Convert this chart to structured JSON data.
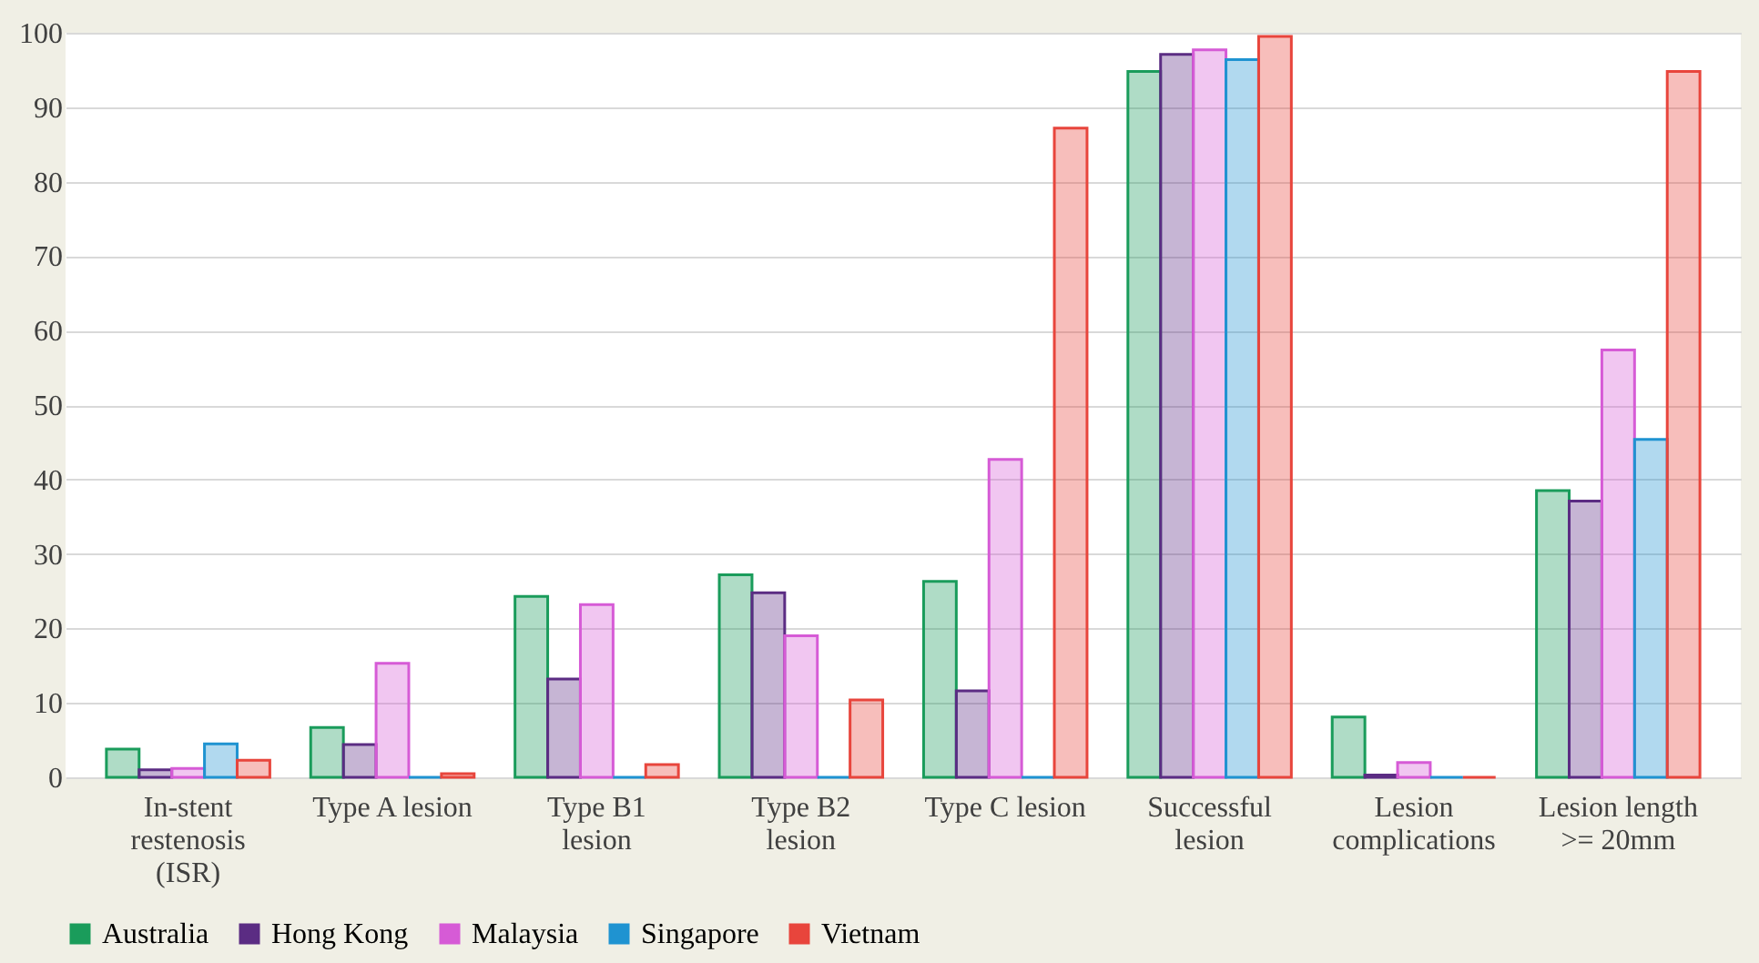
{
  "chart_data": {
    "type": "bar",
    "categories": [
      "In-stent\nrestenosis\n(ISR)",
      "Type A lesion",
      "Type  B1\nlesion",
      "Type B2\nlesion",
      "Type C lesion",
      "Successful\nlesion",
      "Lesion\ncomplications",
      "Lesion length\n>= 20mm"
    ],
    "series": [
      {
        "name": "Australia",
        "color": "#1a9c5b",
        "values": [
          3.8,
          6.7,
          24.3,
          27.2,
          26.3,
          94.8,
          8.1,
          38.5
        ]
      },
      {
        "name": "Hong Kong",
        "color": "#5b2c83",
        "values": [
          1.0,
          4.4,
          13.2,
          24.8,
          11.6,
          97.1,
          0.3,
          37.1
        ]
      },
      {
        "name": "Malaysia",
        "color": "#d65bd6",
        "values": [
          1.2,
          15.3,
          23.2,
          19.0,
          42.7,
          97.7,
          2.0,
          57.4
        ]
      },
      {
        "name": "Singapore",
        "color": "#1f93d1",
        "values": [
          4.5,
          0,
          0,
          0,
          0,
          96.4,
          0,
          45.4
        ]
      },
      {
        "name": "Vietnam",
        "color": "#e8453c",
        "values": [
          2.3,
          0.5,
          1.7,
          10.4,
          87.2,
          99.5,
          0,
          94.8
        ]
      }
    ],
    "ylim": [
      0,
      100
    ],
    "yticks": [
      0,
      10,
      20,
      30,
      40,
      50,
      60,
      70,
      80,
      90,
      100
    ],
    "grid": "y",
    "legend": "bottom"
  }
}
